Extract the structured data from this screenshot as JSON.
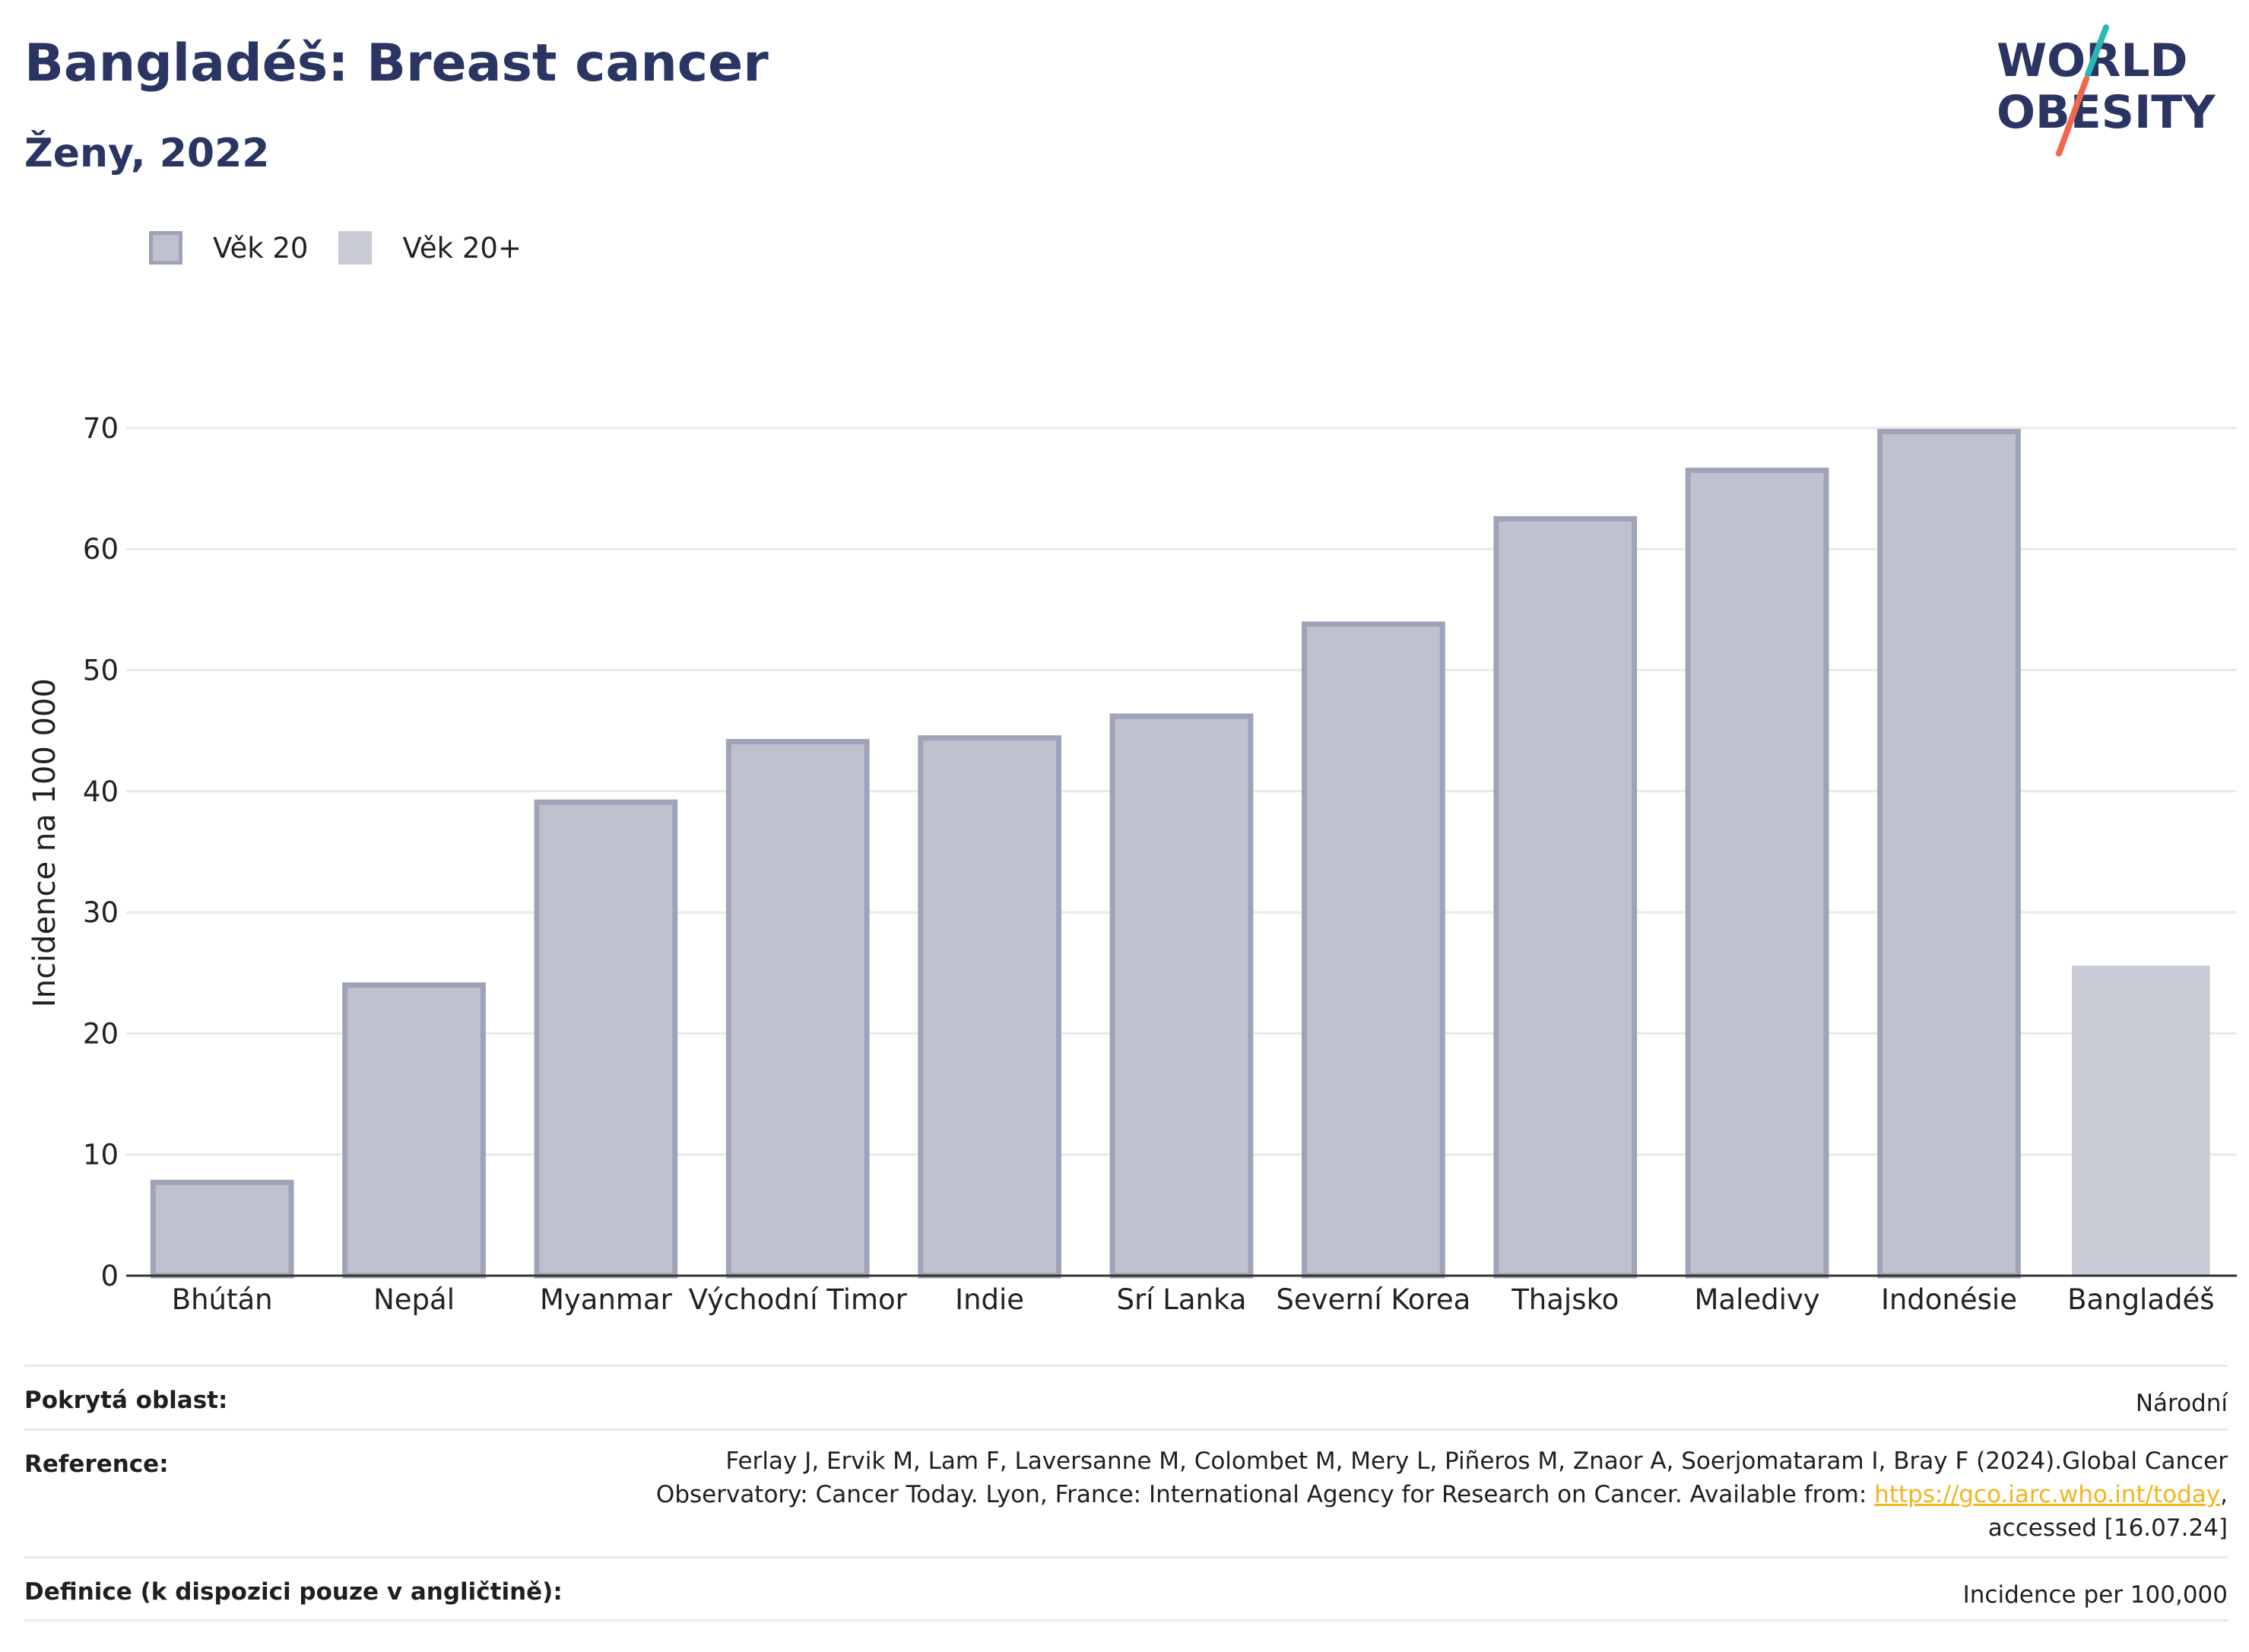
{
  "header": {
    "title": "Bangladéš: Breast cancer",
    "subtitle": "Ženy, 2022"
  },
  "logo": {
    "line1": "WORLD",
    "line2": "OBESITY",
    "accent_colors": [
      "#2bb7b3",
      "#f0674d"
    ],
    "text_color": "#2a3563"
  },
  "legend": [
    {
      "label": "Věk 20",
      "color": "#bfc2ce",
      "border": "#9ea3b7"
    },
    {
      "label": "Věk 20+",
      "color": "#c9cbd6"
    }
  ],
  "chart_data": {
    "type": "bar",
    "ylabel": "Incidence na 100 000",
    "xlabel": "",
    "ylim": [
      0,
      75
    ],
    "yticks": [
      0,
      10,
      20,
      30,
      40,
      50,
      60,
      70
    ],
    "grid": true,
    "categories": [
      "Bhútán",
      "Nepál",
      "Myanmar",
      "Východní Timor",
      "Indie",
      "Srí Lanka",
      "Severní Korea",
      "Thajsko",
      "Maledivy",
      "Indonésie",
      "Bangladéš"
    ],
    "series": [
      {
        "name": "Věk 20",
        "values": [
          7.7,
          24.0,
          39.1,
          44.1,
          44.4,
          46.2,
          53.8,
          62.5,
          66.5,
          69.7,
          null
        ],
        "color": "#bfc2ce",
        "border": "#9ea3b7"
      },
      {
        "name": "Věk 20+",
        "values": [
          null,
          null,
          null,
          null,
          null,
          null,
          null,
          null,
          null,
          null,
          25.6
        ],
        "color": "#c9cbd6"
      }
    ]
  },
  "footer": {
    "coverage_label": "Pokrytá oblast:",
    "coverage_value": "Národní",
    "reference_label": "Reference:",
    "reference_line1": "Ferlay J, Ervik M, Lam F, Laversanne M, Colombet M, Mery L, Piñeros M, Znaor A, Soerjomataram I, Bray F (2024).Global Cancer",
    "reference_line2_pre": "Observatory: Cancer Today. Lyon, France: International Agency for Research on Cancer. Available from: ",
    "reference_link": "https://gco.iarc.who.int/today",
    "reference_line2_post": ",",
    "reference_line3": "accessed [16.07.24]",
    "definition_label": "Definice (k dispozici pouze v angličtině):",
    "definition_value": "Incidence per 100,000"
  }
}
